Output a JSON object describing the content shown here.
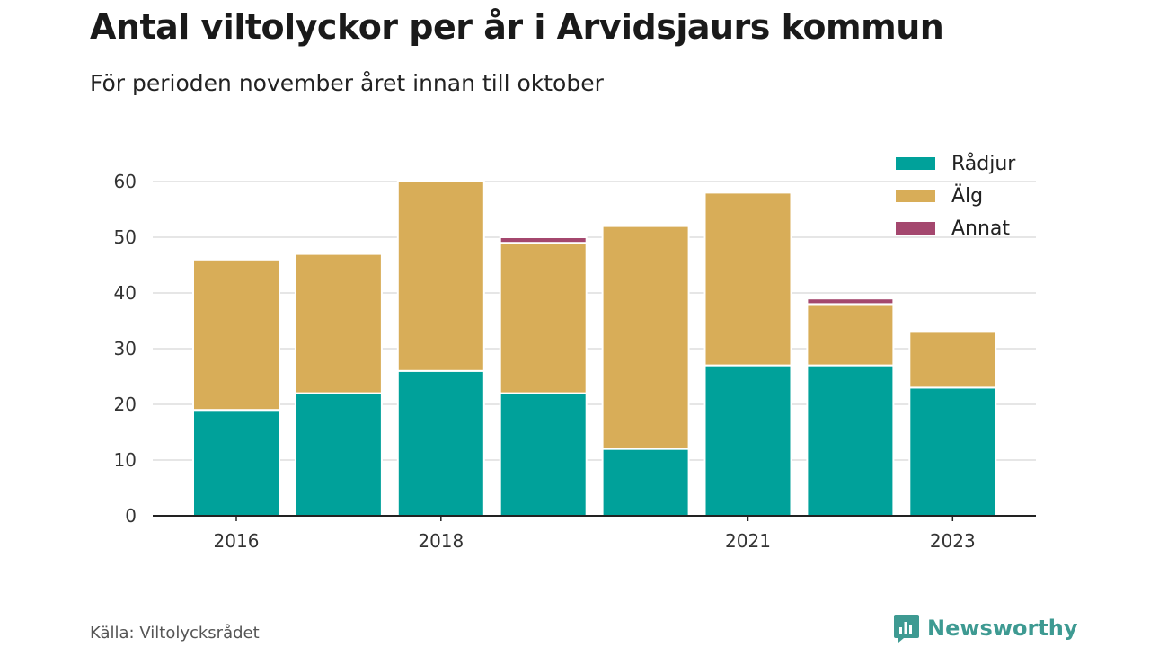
{
  "title": "Antal viltolyckor per år i Arvidsjaurs kommun",
  "subtitle": "För perioden november året innan till oktober",
  "source": "Källa: Viltolycksrådet",
  "brand": "Newsworthy",
  "colors": {
    "radjur": "#00a19a",
    "alg": "#d8ad58",
    "annat": "#a4476e",
    "grid": "#dddddd",
    "axis": "#222222",
    "brand": "#3e9a92"
  },
  "chart_data": {
    "type": "bar",
    "stacked": true,
    "categories": [
      2016,
      2017,
      2018,
      2019,
      2020,
      2021,
      2022,
      2023
    ],
    "x_tick_labels": [
      "2016",
      "",
      "2018",
      "",
      "",
      "2021",
      "",
      "2023"
    ],
    "series": [
      {
        "name": "Rådjur",
        "values": [
          19,
          22,
          26,
          22,
          12,
          27,
          27,
          23
        ],
        "color": "#00a19a"
      },
      {
        "name": "Älg",
        "values": [
          27,
          25,
          34,
          27,
          40,
          31,
          11,
          10
        ],
        "color": "#d8ad58"
      },
      {
        "name": "Annat",
        "values": [
          0,
          0,
          0,
          1,
          0,
          0,
          1,
          0
        ],
        "color": "#a4476e"
      }
    ],
    "ylim": [
      0,
      60
    ],
    "yticks": [
      0,
      10,
      20,
      30,
      40,
      50,
      60
    ],
    "grid": true,
    "legend": "top-right"
  }
}
